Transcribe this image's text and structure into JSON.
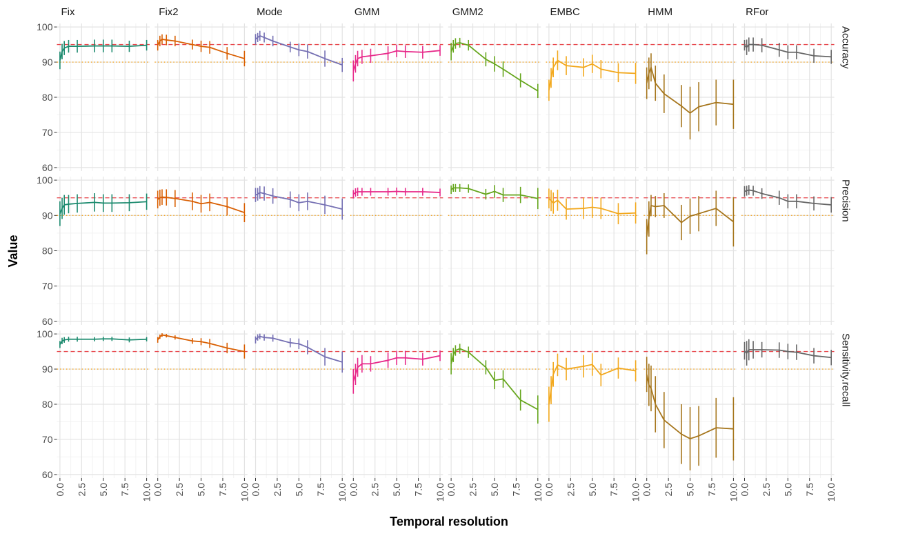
{
  "chart_data": {
    "type": "line",
    "xlabel": "Temporal resolution",
    "ylabel": "Value",
    "x": [
      0,
      0.25,
      0.5,
      1,
      2,
      4,
      5,
      6,
      8,
      10
    ],
    "x_ticks": [
      0.0,
      2.5,
      5.0,
      7.5,
      10.0
    ],
    "x_tick_labels": [
      "0.0",
      "2.5",
      "5.0",
      "7.5",
      "10.0"
    ],
    "xlim": [
      -0.35,
      10.35
    ],
    "ylim": [
      59,
      101
    ],
    "y_ticks": [
      60,
      70,
      80,
      90,
      100
    ],
    "y_tick_labels": [
      "60",
      "70",
      "80",
      "90",
      "100"
    ],
    "reference_lines": [
      {
        "value": 95,
        "style": "dashed",
        "color": "#e8474c"
      },
      {
        "value": 90,
        "style": "dotted",
        "color": "#f5a623"
      }
    ],
    "grid": true,
    "legend": "none",
    "methods": [
      "Fix",
      "Fix2",
      "Mode",
      "GMM",
      "GMM2",
      "EMBC",
      "HMM",
      "RFor"
    ],
    "metrics": [
      "Accuracy",
      "Precision",
      "Sensitivity.recall"
    ],
    "colors": {
      "Fix": "#1b8a6e",
      "Fix2": "#d95f02",
      "Mode": "#7570b3",
      "GMM": "#e7298a",
      "GMM2": "#66a61e",
      "EMBC": "#f2a81d",
      "HMM": "#a6761d",
      "RFor": "#666666"
    },
    "series": {
      "Fix": {
        "Accuracy": {
          "values": [
            90.5,
            93,
            94,
            94.5,
            94.5,
            94.6,
            94.6,
            94.6,
            94.5,
            94.8
          ],
          "errors": [
            2.5,
            2.2,
            2,
            1.8,
            1.8,
            1.8,
            1.8,
            1.8,
            1.6,
            1.5
          ]
        },
        "Precision": {
          "values": [
            90.5,
            92,
            93,
            93.2,
            93.4,
            93.7,
            93.5,
            93.5,
            93.6,
            93.9
          ],
          "errors": [
            3.5,
            3,
            2.8,
            2.6,
            2.6,
            2.6,
            2.5,
            2.5,
            2.4,
            2.3
          ]
        },
        "Sensitivity.recall": {
          "values": [
            97,
            98,
            98.3,
            98.5,
            98.5,
            98.5,
            98.6,
            98.6,
            98.3,
            98.5
          ],
          "errors": [
            1,
            0.9,
            0.8,
            0.7,
            0.7,
            0.6,
            0.6,
            0.6,
            0.7,
            0.6
          ]
        }
      },
      "Fix2": {
        "Accuracy": {
          "values": [
            94.8,
            96,
            96.5,
            96.3,
            96,
            95,
            94.5,
            94.2,
            92.5,
            91
          ],
          "errors": [
            1.5,
            1.5,
            1.4,
            1.5,
            1.5,
            1.4,
            1.6,
            1.8,
            1.8,
            2.2
          ]
        },
        "Precision": {
          "values": [
            94.5,
            95,
            95.2,
            95.1,
            94.8,
            94,
            93.3,
            93.7,
            92.5,
            90.8
          ],
          "errors": [
            2.5,
            2.3,
            2.2,
            2.3,
            2.4,
            2.5,
            2.5,
            2.5,
            2.5,
            2.7
          ]
        },
        "Sensitivity.recall": {
          "values": [
            98.3,
            99.2,
            99.7,
            99.5,
            99,
            98,
            97.8,
            97.3,
            96,
            95
          ],
          "errors": [
            0.8,
            0.6,
            0.5,
            0.5,
            0.6,
            0.8,
            1,
            1.3,
            1.5,
            2
          ]
        }
      },
      "Mode": {
        "Accuracy": {
          "values": [
            96.5,
            97,
            97.5,
            97,
            96,
            94.3,
            93.5,
            93,
            91,
            89.2
          ],
          "errors": [
            1.5,
            1.3,
            1.4,
            1.4,
            1.5,
            1.5,
            1.8,
            2,
            2.3,
            2
          ]
        },
        "Precision": {
          "values": [
            95.8,
            96,
            96.5,
            96.2,
            95.5,
            94.5,
            93.6,
            94,
            93,
            91.8
          ],
          "errors": [
            2,
            1.8,
            1.8,
            2,
            2.2,
            2.3,
            2.4,
            2.5,
            2.6,
            3
          ]
        },
        "Sensitivity.recall": {
          "values": [
            98.3,
            99,
            99.3,
            99,
            98.8,
            97.5,
            97.2,
            96.2,
            93.5,
            92
          ],
          "errors": [
            1,
            0.9,
            0.8,
            0.9,
            1,
            1.3,
            1.5,
            2,
            2.5,
            3
          ]
        }
      },
      "GMM": {
        "Accuracy": {
          "values": [
            87.5,
            89.5,
            91,
            91.5,
            91.8,
            92.5,
            93.2,
            93,
            92.8,
            93.3
          ],
          "errors": [
            3,
            2.5,
            2.2,
            2,
            2,
            2,
            1.8,
            1.8,
            1.8,
            1.5
          ]
        },
        "Precision": {
          "values": [
            96,
            96.5,
            96.7,
            96.7,
            96.7,
            96.7,
            96.8,
            96.7,
            96.7,
            96.5
          ],
          "errors": [
            1.2,
            1.2,
            1.2,
            1.1,
            1.1,
            1.1,
            1.1,
            1.1,
            1.1,
            1.1
          ]
        },
        "Sensitivity.recall": {
          "values": [
            86.5,
            88.5,
            90.5,
            91.5,
            91.5,
            92.5,
            93.2,
            93.2,
            92.8,
            93.8
          ],
          "errors": [
            3.5,
            3,
            2.7,
            2.5,
            2.2,
            2.2,
            2,
            2,
            1.8,
            1.5
          ]
        }
      },
      "GMM2": {
        "Accuracy": {
          "values": [
            93,
            94.5,
            95.3,
            95.5,
            94.8,
            90.8,
            89.5,
            88,
            84.8,
            81.8
          ],
          "errors": [
            2.5,
            1.8,
            1.5,
            1.4,
            1.5,
            2,
            2.2,
            2.2,
            2,
            2
          ]
        },
        "Precision": {
          "values": [
            97.3,
            97.8,
            97.8,
            97.8,
            97.6,
            96,
            96.8,
            95.8,
            95.8,
            94.8
          ],
          "errors": [
            1.2,
            1.1,
            1.1,
            1.1,
            1.2,
            1.5,
            1.8,
            2,
            2.3,
            3
          ]
        },
        "Sensitivity.recall": {
          "values": [
            91.5,
            94,
            95.3,
            95.8,
            94.8,
            90.5,
            86.8,
            87.2,
            81.2,
            78.5
          ],
          "errors": [
            3,
            2,
            1.5,
            1.4,
            1.6,
            2,
            2.5,
            2.5,
            3,
            4
          ]
        }
      },
      "EMBC": {
        "Accuracy": {
          "values": [
            82,
            85.5,
            88.5,
            90.5,
            89,
            88.5,
            89.5,
            88,
            87,
            86.8
          ],
          "errors": [
            3,
            2.8,
            2.8,
            2.8,
            2.7,
            2.6,
            2.6,
            2.6,
            2.7,
            3
          ]
        },
        "Precision": {
          "values": [
            94.8,
            94.2,
            93.5,
            94.3,
            91.8,
            92,
            92.3,
            92,
            90.5,
            90.7
          ],
          "errors": [
            2.8,
            3,
            3,
            3,
            3,
            3,
            3,
            3,
            3,
            3
          ]
        },
        "Sensitivity.recall": {
          "values": [
            80,
            84,
            88.5,
            91.2,
            90,
            90.8,
            91.3,
            88.3,
            90.3,
            89.5
          ],
          "errors": [
            5,
            4,
            3.5,
            3.2,
            3.2,
            3.2,
            3.2,
            3.2,
            3,
            3
          ]
        }
      },
      "HMM": {
        "Accuracy": {
          "values": [
            84,
            86.8,
            88.5,
            84,
            81,
            77.5,
            75.5,
            77.3,
            78.5,
            78
          ],
          "errors": [
            4.5,
            4.5,
            4,
            5,
            5.5,
            6,
            7.5,
            7,
            6.5,
            7
          ]
        },
        "Precision": {
          "values": [
            84,
            89,
            92.8,
            92.5,
            92.8,
            88,
            89.8,
            90.5,
            92,
            88.2
          ],
          "errors": [
            5,
            5,
            3,
            3,
            3.5,
            5,
            5,
            5,
            5,
            7
          ]
        },
        "Sensitivity.recall": {
          "values": [
            88.5,
            85.5,
            84.5,
            80,
            75.5,
            71.5,
            70.2,
            71,
            73.3,
            73
          ],
          "errors": [
            5,
            6,
            6.5,
            8,
            8,
            8.5,
            9,
            8.5,
            8.5,
            9
          ]
        }
      },
      "RFor": {
        "Accuracy": {
          "values": [
            94.8,
            94.2,
            95,
            95,
            94.8,
            93.5,
            92.8,
            92.8,
            91.8,
            91.5
          ],
          "errors": [
            1.5,
            2.2,
            2,
            2,
            2,
            2,
            2,
            2,
            2,
            2
          ]
        },
        "Precision": {
          "values": [
            96.8,
            97,
            97.2,
            97,
            96.2,
            95,
            94,
            94,
            93.4,
            93
          ],
          "errors": [
            1.5,
            1.4,
            1.4,
            1.4,
            1.5,
            2,
            2,
            2,
            2,
            2.2
          ]
        },
        "Sensitivity.recall": {
          "values": [
            95.2,
            94.5,
            95.5,
            95.5,
            95.5,
            95.4,
            95,
            94.8,
            93.8,
            93.3
          ],
          "errors": [
            2.5,
            3.5,
            3,
            2.5,
            2.2,
            2.2,
            2.2,
            2.2,
            2.2,
            2.2
          ]
        }
      }
    }
  }
}
